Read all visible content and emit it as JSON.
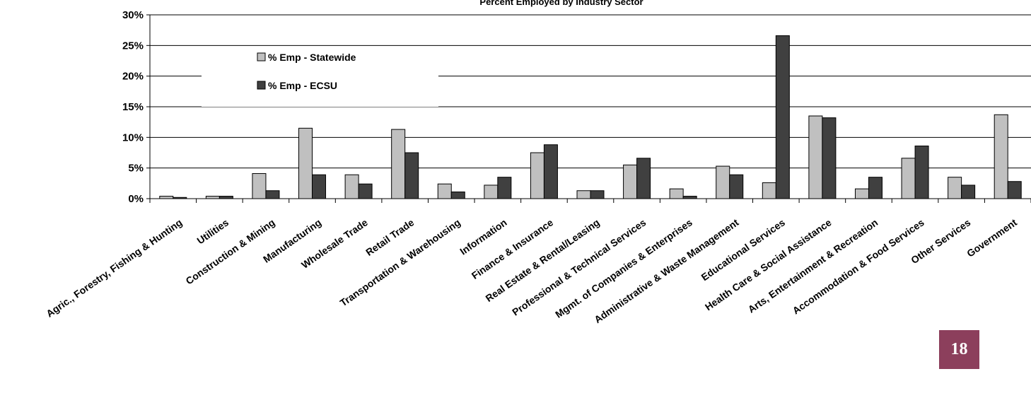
{
  "chart_data": {
    "type": "bar",
    "title": "Percent Employed by Industry Sector",
    "xlabel": "",
    "ylabel": "",
    "ylim": [
      0,
      30
    ],
    "y_ticks": [
      "0%",
      "5%",
      "10%",
      "15%",
      "20%",
      "25%",
      "30%"
    ],
    "grid": "horizontal",
    "legend_position": "top-left",
    "categories": [
      "Agric., Forestry, Fishing & Hunting",
      "Utilities",
      "Construction & Mining",
      "Manufacturing",
      "Wholesale Trade",
      "Retail Trade",
      "Transportation & Warehousing",
      "Information",
      "Finance & Insurance",
      "Real Estate & Rental/Leasing",
      "Professional & Technical Services",
      "Mgmt. of Companies & Enterprises",
      "Administrative & Waste Management",
      "Educational Services",
      "Health Care & Social Assistance",
      "Arts, Entertainment & Recreation",
      "Accommodation & Food Services",
      "Other Services",
      "Government"
    ],
    "series": [
      {
        "name": "% Emp - Statewide",
        "color": "#c0c0c0",
        "values": [
          0.4,
          0.4,
          4.1,
          11.5,
          3.9,
          11.3,
          2.4,
          2.2,
          7.5,
          1.3,
          5.5,
          1.6,
          5.3,
          2.6,
          13.5,
          1.6,
          6.6,
          3.5,
          13.7
        ]
      },
      {
        "name": "% Emp - ECSU",
        "color": "#404040",
        "values": [
          0.2,
          0.4,
          1.3,
          3.9,
          2.4,
          7.5,
          1.1,
          3.5,
          8.8,
          1.3,
          6.6,
          0.4,
          3.9,
          26.6,
          13.2,
          3.5,
          8.6,
          2.2,
          2.8
        ]
      }
    ]
  },
  "page_number": "18",
  "colors": {
    "page_badge": "#8c3f5c",
    "axis": "#000000"
  }
}
